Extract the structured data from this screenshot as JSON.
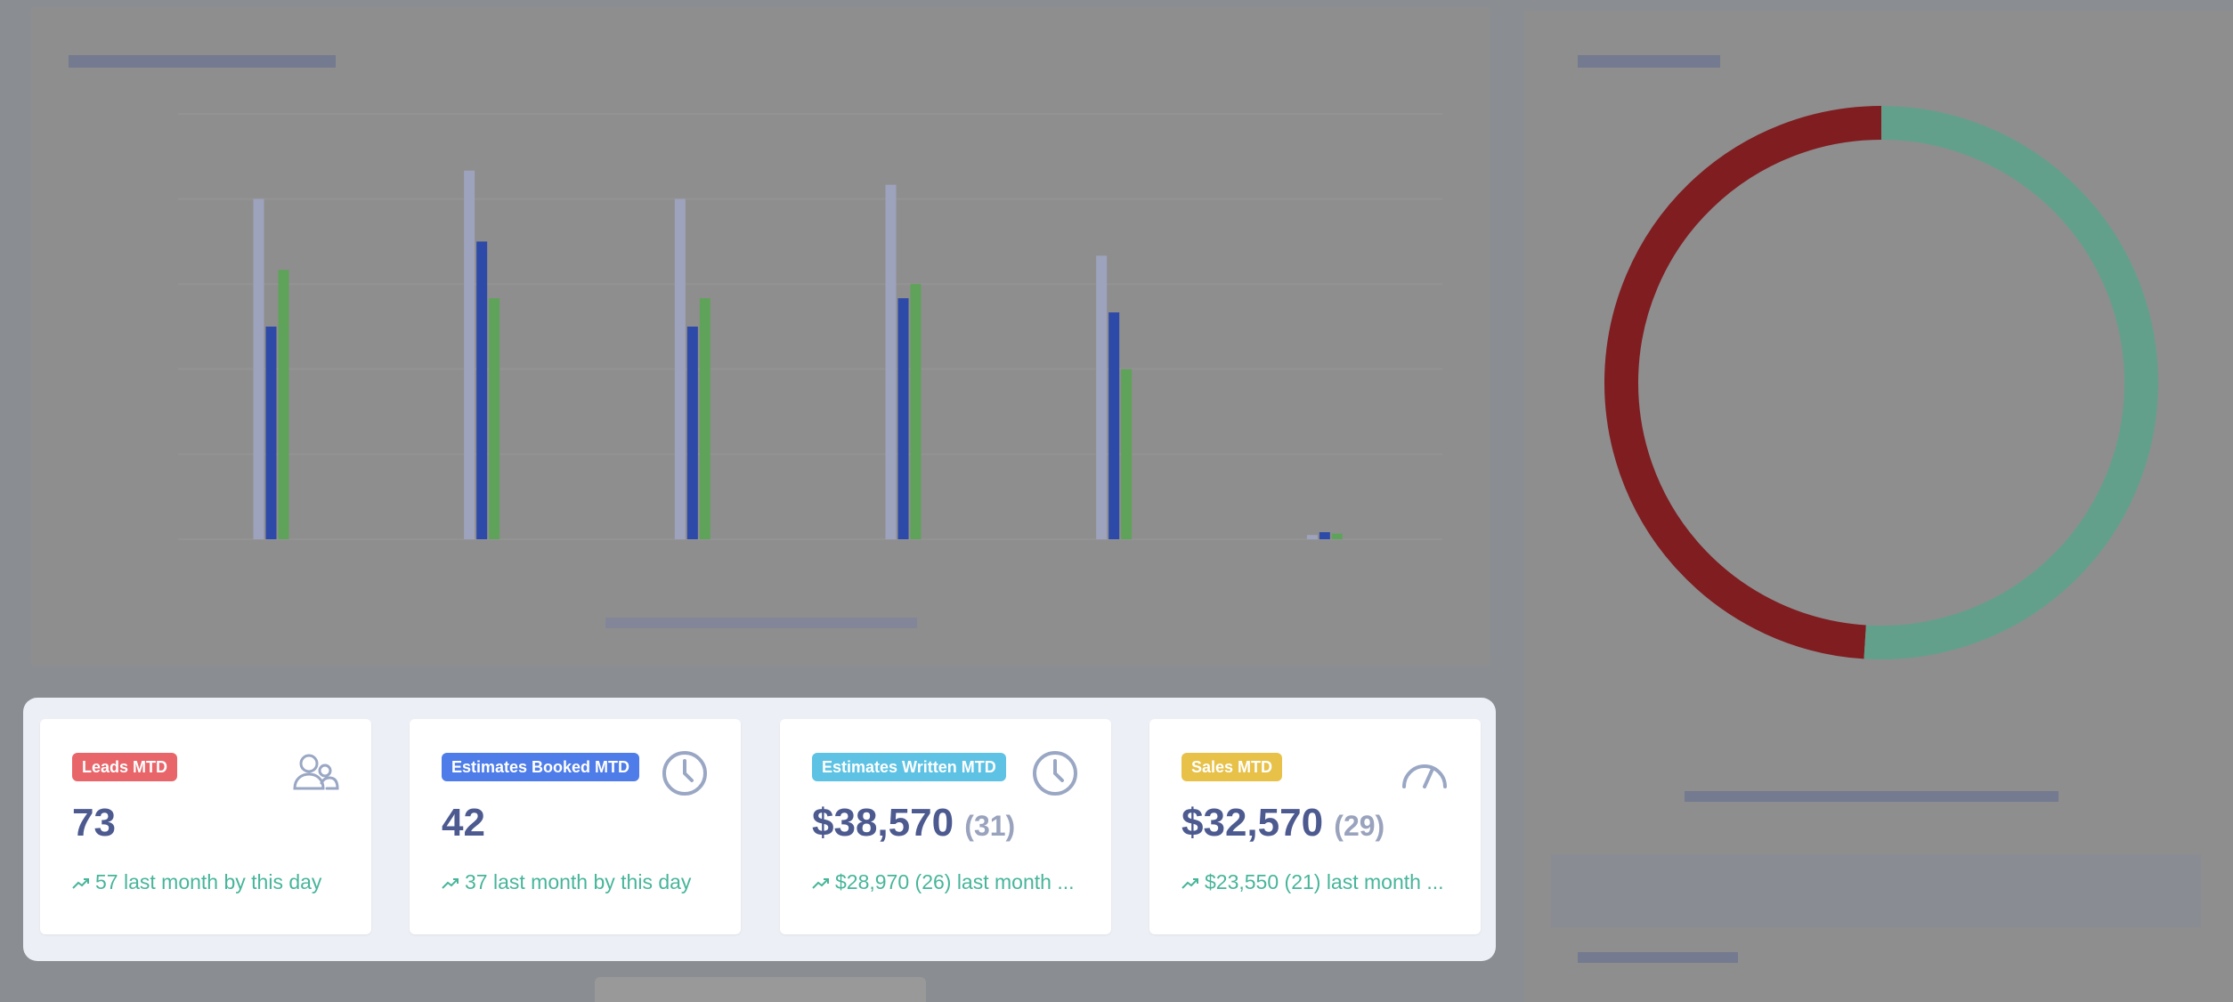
{
  "colors": {
    "leads_badge": "#e8656a",
    "estimates_booked_badge": "#4e7ce8",
    "estimates_written_badge": "#5dc2e4",
    "sales_badge": "#e7c148",
    "value_text": "#4c5a8f",
    "trend_text": "#47b59a",
    "icon": "#9aa7c4",
    "bar_blue": "#2e4aa8",
    "bar_gray": "#9ea3bd",
    "bar_green": "#5fa35a",
    "donut_red": "#7f1d21",
    "donut_green": "#63a08c"
  },
  "cards": [
    {
      "badge": "Leads MTD",
      "icon": "users-icon",
      "value": "73",
      "value_sub": "",
      "trend": "57 last month by this day"
    },
    {
      "badge": "Estimates Booked MTD",
      "icon": "clock-icon",
      "value": "42",
      "value_sub": "",
      "trend": "37 last month by this day"
    },
    {
      "badge": "Estimates Written MTD",
      "icon": "clock-icon",
      "value": "$38,570",
      "value_sub": "(31)",
      "trend": "$28,970 (26) last month ..."
    },
    {
      "badge": "Sales MTD",
      "icon": "speedometer-icon",
      "value": "$32,570",
      "value_sub": "(29)",
      "trend": "$23,550 (21) last month ..."
    }
  ],
  "chart_data": {
    "type": "bar",
    "categories": [
      "",
      "",
      "",
      "",
      "",
      ""
    ],
    "series": [
      {
        "values": [
          15,
          21,
          15,
          17,
          16,
          0.5
        ]
      },
      {
        "values": [
          24,
          26,
          24,
          25,
          20,
          0.3
        ]
      },
      {
        "values": [
          19,
          17,
          17,
          18,
          12,
          0.4
        ]
      }
    ],
    "ylim": [
      0,
      30
    ],
    "grid": true,
    "legend": "bottom"
  },
  "donut_data": {
    "type": "pie",
    "values": [
      49,
      51
    ]
  }
}
